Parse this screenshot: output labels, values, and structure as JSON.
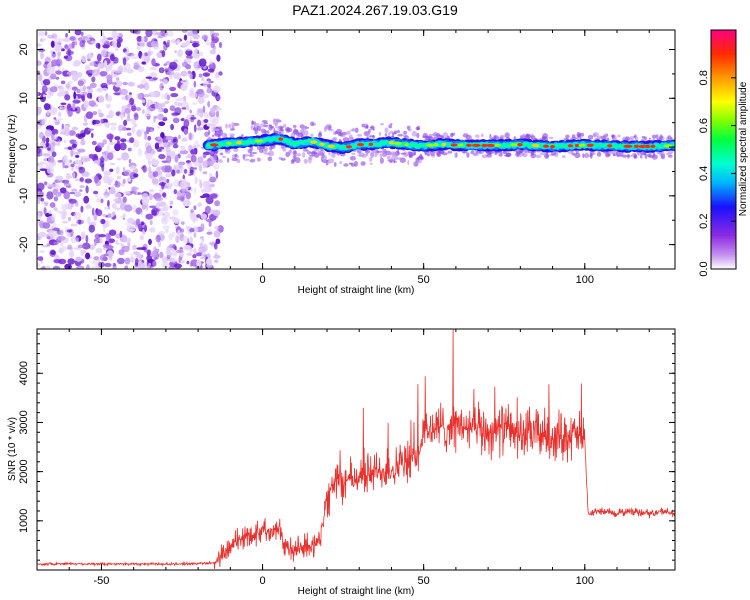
{
  "title": "PAZ1.2024.267.19.03.G19",
  "chart_data": [
    {
      "type": "heatmap",
      "xlabel": "Height of straight line (km)",
      "ylabel": "Frequency (Hz)",
      "xlim": [
        -70,
        128
      ],
      "ylim": [
        -25,
        24
      ],
      "xticks": [
        -50,
        0,
        50,
        100
      ],
      "xtick_labels": [
        "-50",
        "0",
        "50",
        "100"
      ],
      "yticks": [
        -20,
        -10,
        0,
        10,
        20
      ],
      "ytick_labels": [
        "-20",
        "-10",
        "0",
        "10",
        "20"
      ],
      "colorbar": {
        "label": "Normalized spectral amplitude",
        "range": [
          0,
          1
        ],
        "ticks": [
          0.0,
          0.2,
          0.4,
          0.6,
          0.8
        ],
        "tick_labels": [
          "0.0",
          "0.2",
          "0.4",
          "0.6",
          "0.8"
        ],
        "colormap": "rainbow-white-to-magenta"
      },
      "ridge": {
        "description_points_x": [
          -17,
          -10,
          -5,
          0,
          5,
          10,
          15,
          20,
          25,
          30,
          35,
          40,
          45,
          50,
          55,
          60,
          70,
          80,
          90,
          100,
          110,
          120,
          128
        ],
        "frequency_hz": [
          0.3,
          0.8,
          1.0,
          1.3,
          1.8,
          0.6,
          1.2,
          0.3,
          -0.2,
          0.5,
          0.6,
          0.9,
          0.5,
          0.2,
          0.6,
          0.4,
          0.3,
          0.5,
          0.1,
          0.4,
          0.2,
          0.1,
          0.3
        ]
      },
      "noise_region_x": [
        -70,
        -17
      ]
    },
    {
      "type": "line",
      "xlabel": "Height of straight line (km)",
      "ylabel": "SNR (10 * v/v)",
      "xlim": [
        -70,
        128
      ],
      "ylim": [
        0,
        4900
      ],
      "xticks": [
        -50,
        0,
        50,
        100
      ],
      "xtick_labels": [
        "-50",
        "0",
        "50",
        "100"
      ],
      "yticks": [
        1000,
        2000,
        3000,
        4000
      ],
      "ytick_labels": [
        "1000",
        "2000",
        "3000",
        "4000"
      ],
      "line_color": "#e8302c",
      "series": [
        {
          "x": [
            -70,
            -60,
            -50,
            -40,
            -30,
            -20,
            -15,
            -12,
            -10,
            -5,
            0,
            5,
            7,
            10,
            15,
            18,
            20,
            22,
            25,
            30,
            35,
            40,
            45,
            48,
            50,
            55,
            60,
            65,
            70,
            75,
            80,
            85,
            90,
            95,
            99,
            100,
            101,
            105,
            110,
            115,
            120,
            125,
            128
          ],
          "y": [
            120,
            130,
            120,
            125,
            120,
            130,
            150,
            300,
            500,
            700,
            800,
            900,
            450,
            400,
            500,
            600,
            1500,
            1700,
            1800,
            1900,
            2000,
            2050,
            2200,
            2300,
            2800,
            2900,
            2950,
            2850,
            2800,
            2900,
            2750,
            2800,
            2700,
            2750,
            2700,
            2650,
            1150,
            1200,
            1150,
            1200,
            1150,
            1200,
            1100
          ]
        }
      ]
    }
  ]
}
